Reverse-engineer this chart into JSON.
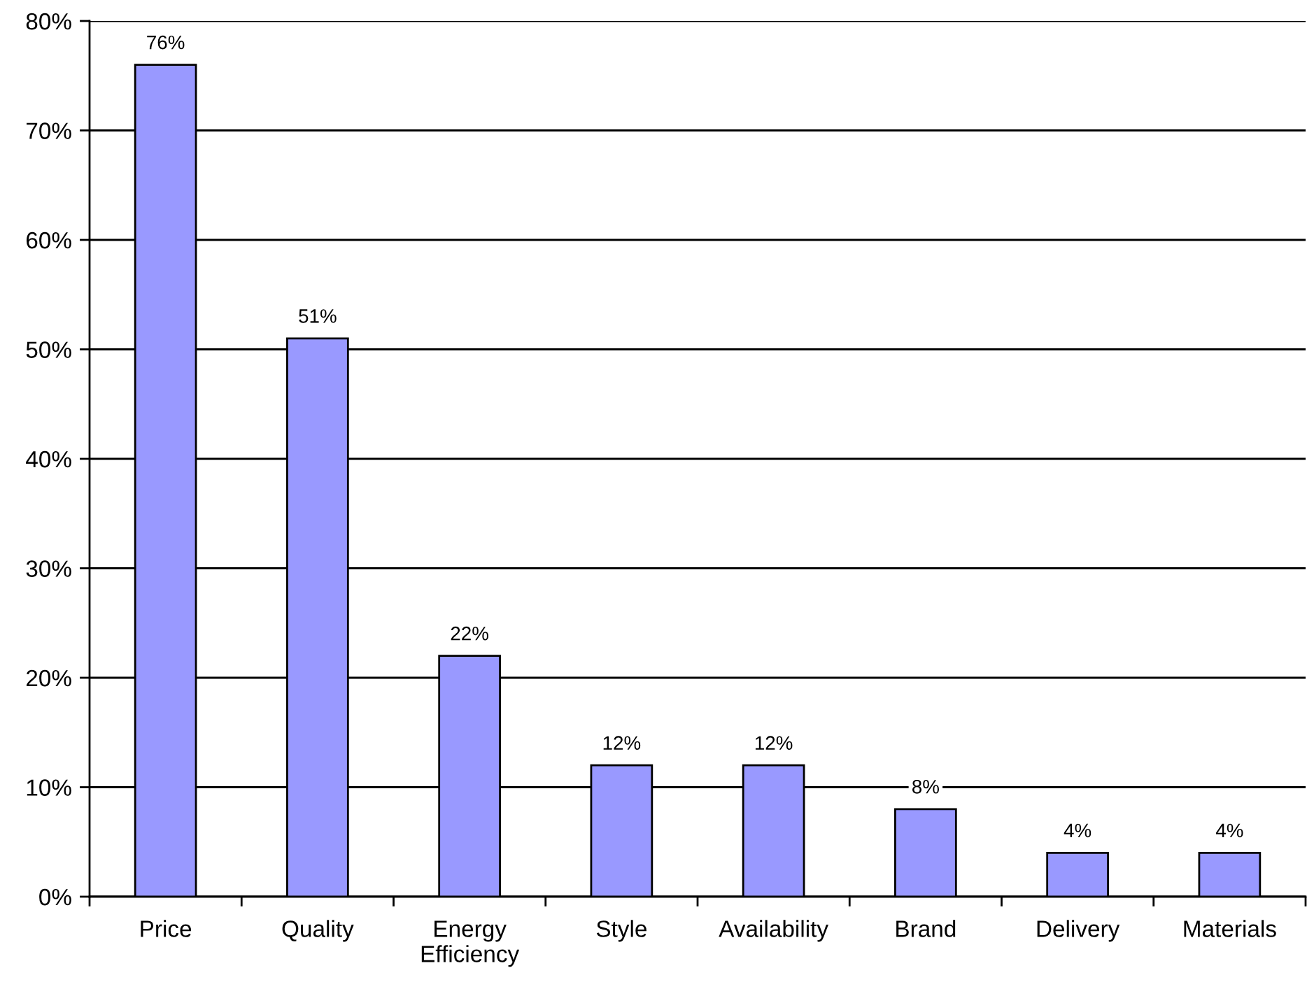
{
  "chart_data": {
    "type": "bar",
    "categories": [
      "Price",
      "Quality",
      "Energy Efficiency",
      "Style",
      "Availability",
      "Brand",
      "Delivery",
      "Materials"
    ],
    "values": [
      76,
      51,
      22,
      12,
      12,
      8,
      4,
      4
    ],
    "value_labels": [
      "76%",
      "51%",
      "22%",
      "12%",
      "12%",
      "8%",
      "4%",
      "4%"
    ],
    "color": "#9999ff",
    "ylim": [
      0,
      80
    ],
    "yticks": [
      {
        "value": 0,
        "label": "0%"
      },
      {
        "value": 10,
        "label": "10%"
      },
      {
        "value": 20,
        "label": "20%"
      },
      {
        "value": 30,
        "label": "30%"
      },
      {
        "value": 40,
        "label": "40%"
      },
      {
        "value": 50,
        "label": "50%"
      },
      {
        "value": 60,
        "label": "60%"
      },
      {
        "value": 70,
        "label": "70%"
      },
      {
        "value": 80,
        "label": "80%"
      }
    ],
    "grid": "y"
  }
}
